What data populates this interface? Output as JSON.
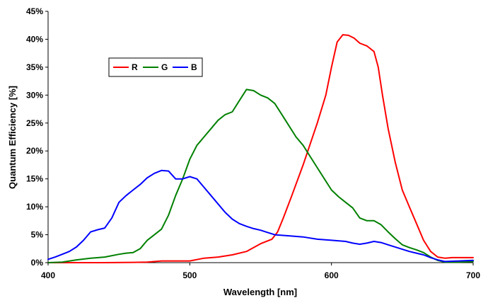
{
  "chart_data": {
    "type": "line",
    "title": "",
    "xlabel": "Wavelength [nm]",
    "ylabel": "Quantum Efficiency [%]",
    "xlim": [
      400,
      700
    ],
    "ylim": [
      0,
      45
    ],
    "x_ticks": [
      400,
      500,
      600,
      700
    ],
    "y_ticks": [
      0,
      5,
      10,
      15,
      20,
      25,
      30,
      35,
      40,
      45
    ],
    "y_tick_suffix": "%",
    "grid": false,
    "legend": {
      "placement": "top-left",
      "orientation": "horizontal"
    },
    "series": [
      {
        "name": "R",
        "color": "#ff0000",
        "points": [
          [
            400,
            0
          ],
          [
            420,
            0
          ],
          [
            440,
            0
          ],
          [
            460,
            0.05
          ],
          [
            470,
            0.1
          ],
          [
            480,
            0.3
          ],
          [
            490,
            0.3
          ],
          [
            500,
            0.3
          ],
          [
            510,
            0.8
          ],
          [
            520,
            1.0
          ],
          [
            530,
            1.4
          ],
          [
            540,
            2.0
          ],
          [
            550,
            3.4
          ],
          [
            558,
            4.2
          ],
          [
            562,
            5.5
          ],
          [
            566,
            8.0
          ],
          [
            572,
            12.0
          ],
          [
            580,
            17.5
          ],
          [
            590,
            25.0
          ],
          [
            596,
            30.0
          ],
          [
            600,
            35.0
          ],
          [
            604,
            39.5
          ],
          [
            608,
            40.8
          ],
          [
            612,
            40.7
          ],
          [
            616,
            40.2
          ],
          [
            620,
            39.3
          ],
          [
            625,
            38.8
          ],
          [
            630,
            37.8
          ],
          [
            633,
            35.0
          ],
          [
            636,
            30.0
          ],
          [
            640,
            24.0
          ],
          [
            645,
            18.0
          ],
          [
            650,
            13.0
          ],
          [
            655,
            10.0
          ],
          [
            660,
            7.0
          ],
          [
            665,
            4.0
          ],
          [
            670,
            2.0
          ],
          [
            675,
            1.0
          ],
          [
            680,
            0.8
          ],
          [
            685,
            0.9
          ],
          [
            690,
            0.9
          ],
          [
            700,
            0.9
          ]
        ]
      },
      {
        "name": "G",
        "color": "#008000",
        "points": [
          [
            400,
            0
          ],
          [
            410,
            0.1
          ],
          [
            420,
            0.5
          ],
          [
            430,
            0.8
          ],
          [
            440,
            1.0
          ],
          [
            450,
            1.5
          ],
          [
            455,
            1.7
          ],
          [
            460,
            1.8
          ],
          [
            465,
            2.5
          ],
          [
            470,
            4.0
          ],
          [
            475,
            5.0
          ],
          [
            480,
            6.0
          ],
          [
            485,
            8.5
          ],
          [
            490,
            12.0
          ],
          [
            495,
            15.0
          ],
          [
            500,
            18.5
          ],
          [
            505,
            21.0
          ],
          [
            510,
            22.5
          ],
          [
            515,
            24.0
          ],
          [
            520,
            25.5
          ],
          [
            525,
            26.5
          ],
          [
            530,
            27.0
          ],
          [
            535,
            29.0
          ],
          [
            540,
            31.0
          ],
          [
            545,
            30.8
          ],
          [
            550,
            30.0
          ],
          [
            555,
            29.5
          ],
          [
            560,
            28.5
          ],
          [
            565,
            26.5
          ],
          [
            570,
            24.5
          ],
          [
            575,
            22.5
          ],
          [
            580,
            21.0
          ],
          [
            585,
            19.0
          ],
          [
            590,
            17.0
          ],
          [
            595,
            15.0
          ],
          [
            600,
            13.0
          ],
          [
            605,
            11.8
          ],
          [
            610,
            10.8
          ],
          [
            615,
            9.8
          ],
          [
            620,
            8.0
          ],
          [
            625,
            7.5
          ],
          [
            630,
            7.5
          ],
          [
            635,
            6.8
          ],
          [
            640,
            5.5
          ],
          [
            645,
            4.3
          ],
          [
            650,
            3.2
          ],
          [
            655,
            2.7
          ],
          [
            660,
            2.3
          ],
          [
            665,
            1.8
          ],
          [
            670,
            1.0
          ],
          [
            675,
            0.4
          ],
          [
            680,
            0.1
          ],
          [
            690,
            0.1
          ],
          [
            700,
            0.2
          ]
        ]
      },
      {
        "name": "B",
        "color": "#0000ff",
        "points": [
          [
            400,
            0.6
          ],
          [
            405,
            1.0
          ],
          [
            410,
            1.5
          ],
          [
            415,
            2.0
          ],
          [
            420,
            2.8
          ],
          [
            425,
            4.0
          ],
          [
            430,
            5.5
          ],
          [
            435,
            5.9
          ],
          [
            440,
            6.2
          ],
          [
            445,
            8.0
          ],
          [
            450,
            10.8
          ],
          [
            455,
            12.0
          ],
          [
            460,
            13.0
          ],
          [
            465,
            14.0
          ],
          [
            470,
            15.2
          ],
          [
            475,
            16.0
          ],
          [
            480,
            16.5
          ],
          [
            485,
            16.4
          ],
          [
            490,
            15.0
          ],
          [
            495,
            15.0
          ],
          [
            500,
            15.4
          ],
          [
            505,
            15.0
          ],
          [
            510,
            13.5
          ],
          [
            515,
            12.0
          ],
          [
            520,
            10.5
          ],
          [
            525,
            9.0
          ],
          [
            530,
            7.8
          ],
          [
            535,
            7.0
          ],
          [
            540,
            6.5
          ],
          [
            545,
            6.1
          ],
          [
            550,
            5.8
          ],
          [
            555,
            5.4
          ],
          [
            560,
            5.0
          ],
          [
            570,
            4.8
          ],
          [
            580,
            4.6
          ],
          [
            590,
            4.2
          ],
          [
            600,
            4.0
          ],
          [
            610,
            3.8
          ],
          [
            615,
            3.5
          ],
          [
            620,
            3.3
          ],
          [
            625,
            3.5
          ],
          [
            630,
            3.8
          ],
          [
            635,
            3.6
          ],
          [
            640,
            3.2
          ],
          [
            645,
            2.8
          ],
          [
            650,
            2.4
          ],
          [
            655,
            2.0
          ],
          [
            660,
            1.7
          ],
          [
            665,
            1.4
          ],
          [
            670,
            0.9
          ],
          [
            675,
            0.5
          ],
          [
            680,
            0.2
          ],
          [
            690,
            0.3
          ],
          [
            700,
            0.4
          ]
        ]
      }
    ]
  }
}
